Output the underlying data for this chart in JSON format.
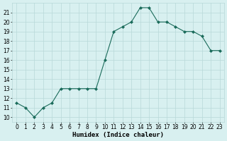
{
  "x": [
    0,
    1,
    2,
    3,
    4,
    5,
    6,
    7,
    8,
    9,
    10,
    11,
    12,
    13,
    14,
    15,
    16,
    17,
    18,
    19,
    20,
    21,
    22,
    23
  ],
  "y": [
    11.5,
    11.0,
    10.0,
    11.0,
    11.5,
    13.0,
    13.0,
    13.0,
    13.0,
    13.0,
    16.0,
    19.0,
    19.5,
    20.0,
    21.5,
    21.5,
    20.0,
    20.0,
    19.5,
    19.0,
    19.0,
    18.5,
    17.0,
    17.0
  ],
  "xlabel": "Humidex (Indice chaleur)",
  "xlim_lo": -0.5,
  "xlim_hi": 23.5,
  "ylim_lo": 9.5,
  "ylim_hi": 22.0,
  "yticks": [
    10,
    11,
    12,
    13,
    14,
    15,
    16,
    17,
    18,
    19,
    20,
    21
  ],
  "xticks": [
    0,
    1,
    2,
    3,
    4,
    5,
    6,
    7,
    8,
    9,
    10,
    11,
    12,
    13,
    14,
    15,
    16,
    17,
    18,
    19,
    20,
    21,
    22,
    23
  ],
  "line_color": "#1a6b5a",
  "marker": "D",
  "marker_size": 2.0,
  "bg_color": "#d8f0f0",
  "grid_color": "#b8d8d8",
  "xlabel_fontsize": 6.5,
  "tick_fontsize": 5.5
}
